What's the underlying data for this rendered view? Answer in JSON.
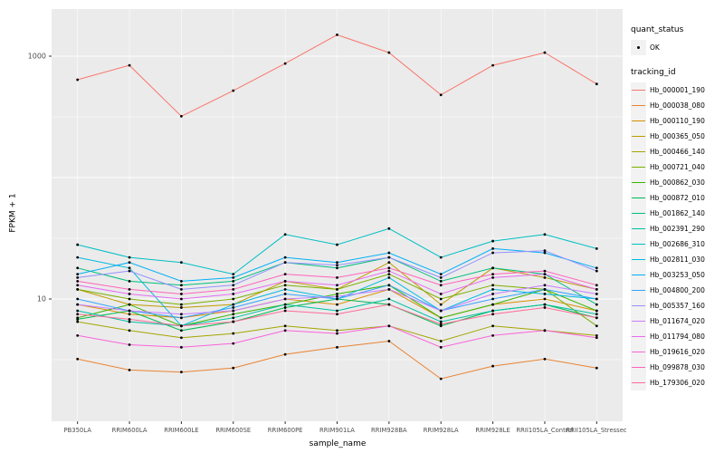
{
  "axes": {
    "x_title": "sample_name",
    "y_title": "FPKM + 1"
  },
  "legend": {
    "quant_title": "quant_status",
    "quant_ok_label": "OK",
    "tracking_title": "tracking_id"
  },
  "colors": {
    "panel_bg": "#EBEBEB",
    "grid_major": "#FFFFFF",
    "grid_minor": "#FFFFFF",
    "axis_text": "#4D4D4D",
    "point": "#000000",
    "legend_key_bg": "#F2F2F2"
  },
  "chart_data": {
    "type": "line",
    "title": "",
    "xlabel": "sample_name",
    "ylabel": "FPKM + 1",
    "y_scale": "log10",
    "ylim": [
      1.5,
      2500
    ],
    "yticks": [
      10,
      1000
    ],
    "ytick_labels": [
      "10",
      "1000"
    ],
    "grid": "on",
    "legend_position": "right",
    "point_shape": "filled-circle",
    "categories": [
      "PB350LA",
      "RRIM600LA",
      "RRIM600LE",
      "RRIM600SE",
      "RRIM600PE",
      "RRIM901LA",
      "RRIM928BA",
      "RRIM928LA",
      "RRIM928LE",
      "RRII105LA_Control",
      "RRII105LA_Stressed"
    ],
    "series": [
      {
        "name": "Hb_000001_190",
        "color": "#F8766D",
        "values": [
          640,
          840,
          320,
          520,
          870,
          1500,
          1070,
          480,
          840,
          1070,
          590
        ]
      },
      {
        "name": "Hb_000038_080",
        "color": "#EA8331",
        "values": [
          3.2,
          2.6,
          2.5,
          2.7,
          3.5,
          4.0,
          4.5,
          2.2,
          2.8,
          3.2,
          2.7
        ]
      },
      {
        "name": "Hb_000110_190",
        "color": "#D89000",
        "values": [
          9,
          7.5,
          7,
          8,
          10,
          9,
          12,
          7,
          9,
          10,
          8
        ]
      },
      {
        "name": "Hb_000365_050",
        "color": "#C09B00",
        "values": [
          12,
          9,
          8.5,
          9,
          14,
          12,
          20,
          9,
          18,
          15,
          12
        ]
      },
      {
        "name": "Hb_000466_140",
        "color": "#A3A500",
        "values": [
          6.5,
          5.5,
          4.8,
          5.2,
          6,
          5.5,
          6,
          4.5,
          6,
          5.5,
          5
        ]
      },
      {
        "name": "Hb_000721_040",
        "color": "#7CAE00",
        "values": [
          12,
          10,
          9,
          10,
          13,
          12,
          16,
          10,
          13,
          12,
          6
        ]
      },
      {
        "name": "Hb_000862_030",
        "color": "#39B600",
        "values": [
          7,
          9,
          6,
          7.5,
          9,
          11,
          13,
          7,
          9,
          12,
          8
        ]
      },
      {
        "name": "Hb_000872_010",
        "color": "#00BB4E",
        "values": [
          6.8,
          8,
          5.5,
          6.5,
          8.5,
          10,
          9,
          6,
          8,
          9,
          7
        ]
      },
      {
        "name": "Hb_001862_140",
        "color": "#00BF7D",
        "values": [
          18,
          14,
          13,
          14,
          20,
          18,
          22,
          14,
          18,
          16,
          9
        ]
      },
      {
        "name": "Hb_002391_290",
        "color": "#00C1A3",
        "values": [
          8,
          6.5,
          6,
          7,
          9,
          8,
          10,
          6.5,
          8,
          9,
          7.5
        ]
      },
      {
        "name": "Hb_002686_310",
        "color": "#00BFC4",
        "values": [
          28,
          22,
          20,
          16,
          34,
          28,
          38,
          22,
          30,
          34,
          26
        ]
      },
      {
        "name": "Hb_002811_030",
        "color": "#00BAE0",
        "values": [
          22,
          18,
          6,
          9,
          12,
          10,
          15,
          8,
          12,
          11,
          10
        ]
      },
      {
        "name": "Hb_003253_050",
        "color": "#00B0F6",
        "values": [
          16,
          20,
          14,
          15,
          22,
          20,
          24,
          16,
          26,
          24,
          18
        ]
      },
      {
        "name": "Hb_004800_200",
        "color": "#35A2FF",
        "values": [
          10,
          8,
          7,
          8.5,
          11,
          10,
          13,
          8,
          10,
          12,
          10
        ]
      },
      {
        "name": "Hb_005357_160",
        "color": "#9590FF",
        "values": [
          15,
          17,
          12,
          13,
          20,
          19,
          22,
          15,
          24,
          25,
          17
        ]
      },
      {
        "name": "Hb_011674_020",
        "color": "#C77CFF",
        "values": [
          9,
          8,
          7.5,
          8,
          10,
          10.5,
          12,
          8,
          11,
          13,
          11
        ]
      },
      {
        "name": "Hb_011794_080",
        "color": "#E76BF3",
        "values": [
          13,
          11,
          10,
          11,
          14,
          13,
          17,
          11,
          15,
          16,
          12
        ]
      },
      {
        "name": "Hb_019616_020",
        "color": "#FA62DB",
        "values": [
          5,
          4.2,
          4,
          4.3,
          5.5,
          5.2,
          6,
          4,
          5,
          5.5,
          4.8
        ]
      },
      {
        "name": "Hb_099878_030",
        "color": "#FF62BC",
        "values": [
          14,
          12,
          11,
          12,
          16,
          15,
          18,
          13,
          16,
          17,
          13
        ]
      },
      {
        "name": "Hb_179306_020",
        "color": "#FF6A98",
        "values": [
          7.5,
          6.8,
          6,
          6.5,
          8,
          7.5,
          9,
          6.2,
          7.5,
          8.5,
          7
        ]
      }
    ]
  }
}
